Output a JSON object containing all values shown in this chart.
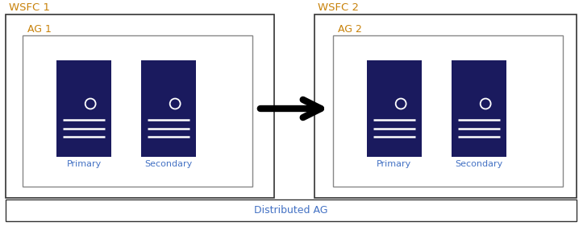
{
  "bg_color": "#ffffff",
  "server_color": "#1a1a5e",
  "server_highlight": "#ffffff",
  "label_color": "#4472c4",
  "wsfc_ag_label_color": "#c8820a",
  "dist_ag_label_color": "#4472c4",
  "wsfc1_label": "WSFC 1",
  "wsfc2_label": "WSFC 2",
  "ag1_label": "AG 1",
  "ag2_label": "AG 2",
  "dist_ag_label": "Distributed AG",
  "primary_label": "Primary",
  "secondary_label": "Secondary",
  "fig_w": 7.23,
  "fig_h": 2.81,
  "dpi": 100
}
